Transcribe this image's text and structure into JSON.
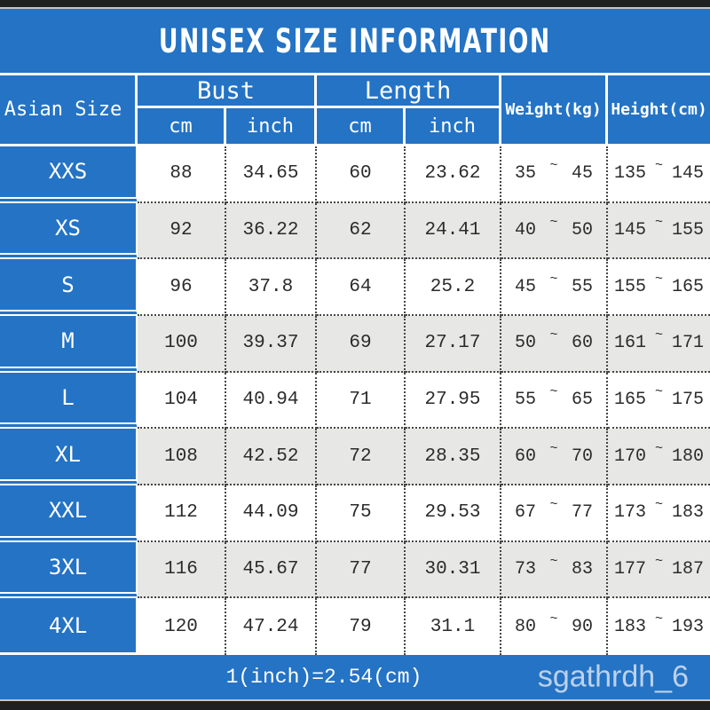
{
  "title": "UNISEX SIZE INFORMATION",
  "colors": {
    "blue": "#2473c5",
    "row-alt": "#e7e7e5",
    "bar-dark": "#202020",
    "bar-light": "#c6c6c6",
    "dotted": "#454545",
    "ink": "#2b2b2b",
    "watermark": "#d7e2f2"
  },
  "header": {
    "size_col": "Asian Size",
    "bust": "Bust",
    "length": "Length",
    "weight": "Weight(kg)",
    "height": "Height(cm)",
    "cm": "cm",
    "inch": "inch"
  },
  "tilde": "~",
  "rows": [
    {
      "size": "XXS",
      "bust_cm": "88",
      "bust_inch": "34.65",
      "length_cm": "60",
      "length_inch": "23.62",
      "weight_min": "35",
      "weight_max": "45",
      "height_min": "135",
      "height_max": "145"
    },
    {
      "size": "XS",
      "bust_cm": "92",
      "bust_inch": "36.22",
      "length_cm": "62",
      "length_inch": "24.41",
      "weight_min": "40",
      "weight_max": "50",
      "height_min": "145",
      "height_max": "155"
    },
    {
      "size": "S",
      "bust_cm": "96",
      "bust_inch": "37.8",
      "length_cm": "64",
      "length_inch": "25.2",
      "weight_min": "45",
      "weight_max": "55",
      "height_min": "155",
      "height_max": "165"
    },
    {
      "size": "M",
      "bust_cm": "100",
      "bust_inch": "39.37",
      "length_cm": "69",
      "length_inch": "27.17",
      "weight_min": "50",
      "weight_max": "60",
      "height_min": "161",
      "height_max": "171"
    },
    {
      "size": "L",
      "bust_cm": "104",
      "bust_inch": "40.94",
      "length_cm": "71",
      "length_inch": "27.95",
      "weight_min": "55",
      "weight_max": "65",
      "height_min": "165",
      "height_max": "175"
    },
    {
      "size": "XL",
      "bust_cm": "108",
      "bust_inch": "42.52",
      "length_cm": "72",
      "length_inch": "28.35",
      "weight_min": "60",
      "weight_max": "70",
      "height_min": "170",
      "height_max": "180"
    },
    {
      "size": "XXL",
      "bust_cm": "112",
      "bust_inch": "44.09",
      "length_cm": "75",
      "length_inch": "29.53",
      "weight_min": "67",
      "weight_max": "77",
      "height_min": "173",
      "height_max": "183"
    },
    {
      "size": "3XL",
      "bust_cm": "116",
      "bust_inch": "45.67",
      "length_cm": "77",
      "length_inch": "30.31",
      "weight_min": "73",
      "weight_max": "83",
      "height_min": "177",
      "height_max": "187"
    },
    {
      "size": "4XL",
      "bust_cm": "120",
      "bust_inch": "47.24",
      "length_cm": "79",
      "length_inch": "31.1",
      "weight_min": "80",
      "weight_max": "90",
      "height_min": "183",
      "height_max": "193"
    }
  ],
  "footer": {
    "note": "1(inch)=2.54(cm)",
    "watermark": "sgathrdh_6"
  }
}
